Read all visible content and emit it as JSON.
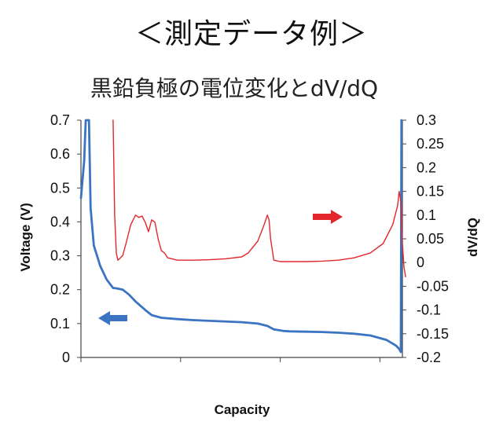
{
  "heading": "＜測定データ例＞",
  "colors": {
    "voltage": "#3b74c2",
    "dvdq": "#e4262c",
    "axis": "#444444"
  },
  "chart_data": {
    "type": "line",
    "title": "黒鉛負極の電位変化とdV/dQ",
    "xlabel": "Capacity",
    "ylabel": "Voltage  (V)",
    "y2label": "dV/dQ",
    "xlim": [
      0,
      1.0
    ],
    "ylim": [
      0,
      0.7
    ],
    "y2lim": [
      -0.2,
      0.3
    ],
    "yticks": [
      "0",
      "0.1",
      "0.2",
      "0.3",
      "0.4",
      "0.5",
      "0.6",
      "0.7"
    ],
    "y2ticks": [
      "-0.2",
      "-0.15",
      "-0.1",
      "-0.05",
      "0",
      "0.05",
      "0.1",
      "0.15",
      "0.2",
      "0.25",
      "0.3"
    ],
    "xtick_count": 4,
    "grid": false,
    "legend": "arrows: blue arrow points to left axis (Voltage), red arrow points to right axis (dV/dQ)",
    "series": [
      {
        "axis": "left",
        "color": "voltage",
        "x": [
          0.0,
          0.01,
          0.015,
          0.025,
          0.03,
          0.04,
          0.06,
          0.08,
          0.1,
          0.11,
          0.13,
          0.15,
          0.17,
          0.2,
          0.22,
          0.25,
          0.3,
          0.35,
          0.4,
          0.5,
          0.55,
          0.58,
          0.6,
          0.63,
          0.65,
          0.7,
          0.75,
          0.8,
          0.85,
          0.9,
          0.95,
          0.98,
          0.99,
          0.995,
          0.997
        ],
        "y": [
          0.47,
          0.58,
          0.72,
          0.72,
          0.44,
          0.33,
          0.27,
          0.23,
          0.205,
          0.204,
          0.2,
          0.185,
          0.165,
          0.14,
          0.125,
          0.117,
          0.113,
          0.11,
          0.108,
          0.104,
          0.1,
          0.093,
          0.083,
          0.078,
          0.077,
          0.076,
          0.075,
          0.073,
          0.07,
          0.065,
          0.052,
          0.035,
          0.025,
          0.016,
          0.72
        ]
      },
      {
        "axis": "right",
        "color": "dvdq",
        "x": [
          0.1,
          0.105,
          0.11,
          0.115,
          0.12,
          0.13,
          0.14,
          0.155,
          0.17,
          0.18,
          0.19,
          0.2,
          0.21,
          0.22,
          0.23,
          0.24,
          0.25,
          0.26,
          0.27,
          0.3,
          0.35,
          0.4,
          0.45,
          0.5,
          0.52,
          0.55,
          0.57,
          0.58,
          0.585,
          0.59,
          0.6,
          0.62,
          0.65,
          0.7,
          0.75,
          0.8,
          0.85,
          0.9,
          0.94,
          0.97,
          0.985,
          0.99,
          0.995,
          1.0,
          1.005,
          1.01
        ],
        "y": [
          0.3,
          0.1,
          0.02,
          0.005,
          0.008,
          0.015,
          0.04,
          0.08,
          0.1,
          0.095,
          0.098,
          0.085,
          0.065,
          0.09,
          0.085,
          0.05,
          0.025,
          0.02,
          0.01,
          0.005,
          0.005,
          0.006,
          0.008,
          0.012,
          0.02,
          0.045,
          0.08,
          0.1,
          0.09,
          0.05,
          0.005,
          0.002,
          0.002,
          0.002,
          0.003,
          0.005,
          0.01,
          0.02,
          0.04,
          0.08,
          0.12,
          0.15,
          0.13,
          0.04,
          -0.01,
          -0.03
        ]
      }
    ]
  }
}
